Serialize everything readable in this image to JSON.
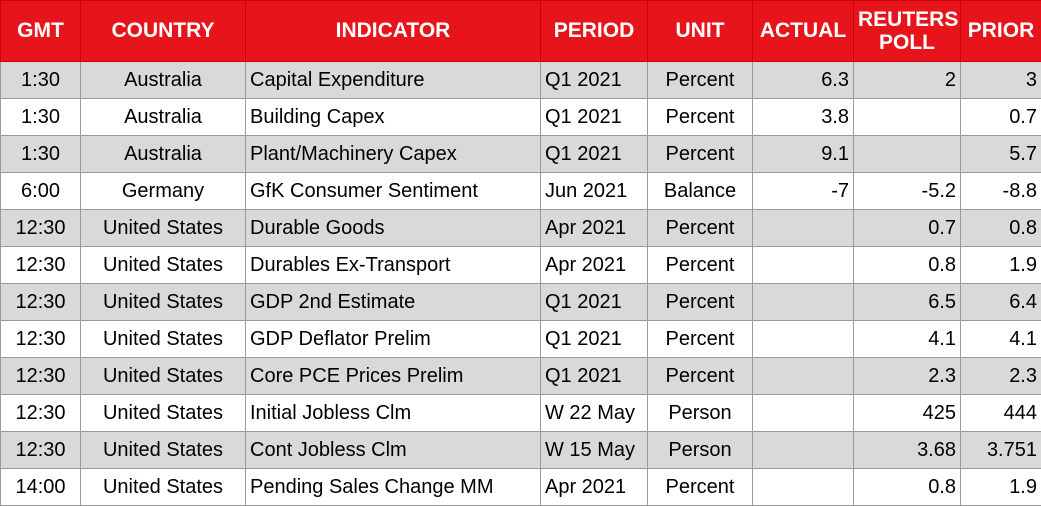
{
  "table": {
    "headers": [
      "GMT",
      "COUNTRY",
      "INDICATOR",
      "PERIOD",
      "UNIT",
      "ACTUAL",
      "REUTERS POLL",
      "PRIOR"
    ],
    "rows": [
      [
        "1:30",
        "Australia",
        "Capital Expenditure",
        "Q1 2021",
        "Percent",
        "6.3",
        "2",
        "3"
      ],
      [
        "1:30",
        "Australia",
        "Building Capex",
        "Q1 2021",
        "Percent",
        "3.8",
        null,
        "0.7"
      ],
      [
        "1:30",
        "Australia",
        "Plant/Machinery Capex",
        "Q1 2021",
        "Percent",
        "9.1",
        null,
        "5.7"
      ],
      [
        "6:00",
        "Germany",
        "GfK Consumer Sentiment",
        "Jun 2021",
        "Balance",
        "-7",
        "-5.2",
        "-8.8"
      ],
      [
        "12:30",
        "United States",
        "Durable Goods",
        "Apr 2021",
        "Percent",
        null,
        "0.7",
        "0.8"
      ],
      [
        "12:30",
        "United States",
        "Durables Ex-Transport",
        "Apr 2021",
        "Percent",
        null,
        "0.8",
        "1.9"
      ],
      [
        "12:30",
        "United States",
        "GDP 2nd Estimate",
        "Q1 2021",
        "Percent",
        null,
        "6.5",
        "6.4"
      ],
      [
        "12:30",
        "United States",
        "GDP Deflator Prelim",
        "Q1 2021",
        "Percent",
        null,
        "4.1",
        "4.1"
      ],
      [
        "12:30",
        "United States",
        "Core PCE Prices Prelim",
        "Q1 2021",
        "Percent",
        null,
        "2.3",
        "2.3"
      ],
      [
        "12:30",
        "United States",
        "Initial Jobless Clm",
        "W 22 May",
        "Person",
        null,
        "425",
        "444"
      ],
      [
        "12:30",
        "United States",
        "Cont Jobless Clm",
        "W 15 May",
        "Person",
        null,
        "3.68",
        "3.751"
      ],
      [
        "14:00",
        "United States",
        "Pending Sales Change MM",
        "Apr 2021",
        "Percent",
        null,
        "0.8",
        "1.9"
      ]
    ]
  }
}
